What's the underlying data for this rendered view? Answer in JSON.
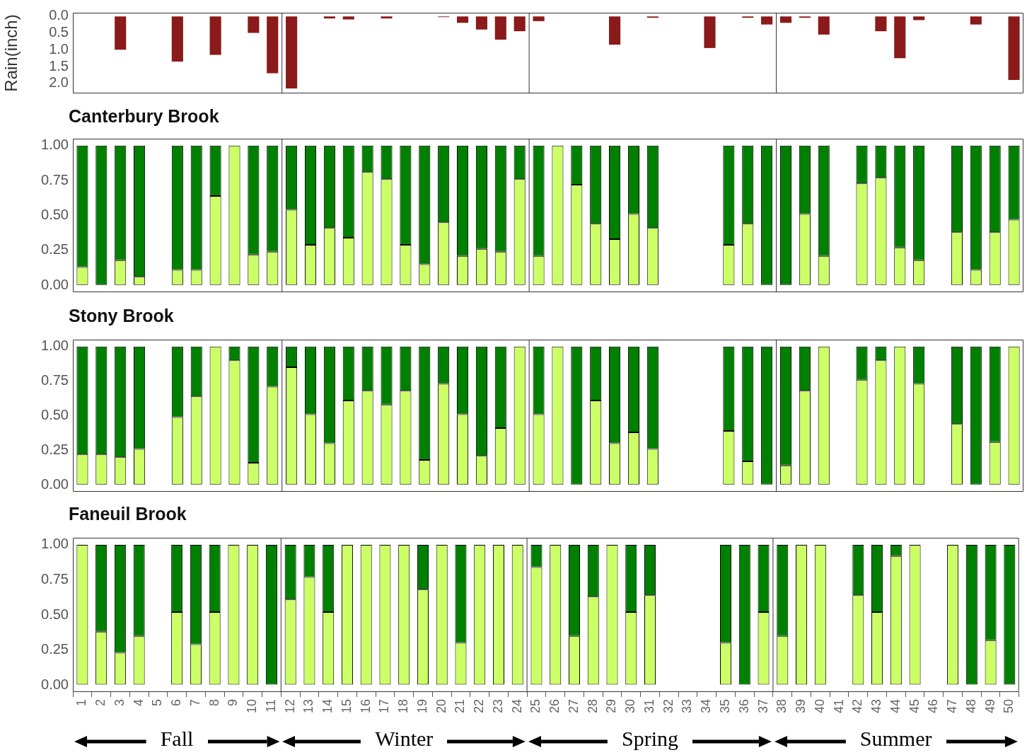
{
  "chart_data": [
    {
      "type": "bar",
      "ylabel": "Rain(inch)",
      "tick_labels": "y",
      "x": [
        1,
        2,
        3,
        4,
        5,
        6,
        7,
        8,
        9,
        10,
        11,
        12,
        13,
        14,
        15,
        16,
        17,
        18,
        19,
        20,
        21,
        22,
        23,
        24,
        25,
        26,
        27,
        28,
        29,
        30,
        31,
        32,
        33,
        34,
        35,
        36,
        37,
        38,
        39,
        40,
        41,
        42,
        43,
        44,
        45,
        46,
        47,
        48,
        49,
        50
      ],
      "xlim": [
        0.5,
        50.5
      ],
      "xticks": [
        1,
        2,
        3,
        4,
        5,
        6,
        7,
        8,
        9,
        10,
        11,
        12,
        13,
        14,
        15,
        16,
        17,
        18,
        19,
        20,
        21,
        22,
        23,
        24,
        25,
        26,
        27,
        28,
        29,
        30,
        31,
        32,
        33,
        34,
        35,
        36,
        37,
        38,
        39,
        40,
        41,
        42,
        43,
        44,
        45,
        46,
        47,
        48,
        49,
        50
      ],
      "ylim": [
        2.3,
        -0.1
      ],
      "yticks": [
        {
          "value": 0,
          "label": "0.0"
        },
        {
          "value": 0.5,
          "label": "0.5"
        },
        {
          "value": 1,
          "label": "1.0"
        },
        {
          "value": 1.5,
          "label": "1.5"
        },
        {
          "value": 2,
          "label": "2.0"
        }
      ],
      "color": "#8b1a1a",
      "values": [
        0,
        0,
        1.0,
        0,
        0,
        1.35,
        0,
        1.15,
        0,
        0.5,
        1.7,
        2.15,
        0,
        0.07,
        0.1,
        0,
        0.07,
        0,
        0,
        0.03,
        0.2,
        0.4,
        0.7,
        0.45,
        0.15,
        0,
        0,
        0,
        0.85,
        0,
        0.05,
        0,
        0,
        0.95,
        0,
        0.05,
        0.25,
        0.2,
        0.05,
        0.55,
        0,
        0,
        0.45,
        1.25,
        0.12,
        0,
        0,
        0.25,
        0,
        1.9
      ],
      "ref_lines": [
        {
          "axis": "x",
          "value": 11.5,
          "color": "#333333"
        },
        {
          "axis": "x",
          "value": 24.5,
          "color": "#333333"
        },
        {
          "axis": "x",
          "value": 37.5,
          "color": "#333333"
        }
      ]
    },
    {
      "type": "bar",
      "title": "Canterbury Brook",
      "stacked": true,
      "tick_labels": "y",
      "x": [
        1,
        2,
        3,
        4,
        5,
        6,
        7,
        8,
        9,
        10,
        11,
        12,
        13,
        14,
        15,
        16,
        17,
        18,
        19,
        20,
        21,
        22,
        23,
        24,
        25,
        26,
        27,
        28,
        29,
        30,
        31,
        32,
        33,
        34,
        35,
        36,
        37,
        38,
        39,
        40,
        41,
        42,
        43,
        44,
        45,
        46,
        47,
        48,
        49,
        50
      ],
      "xlim": [
        0.5,
        50.5
      ],
      "xticks": [
        1,
        2,
        3,
        4,
        5,
        6,
        7,
        8,
        9,
        10,
        11,
        12,
        13,
        14,
        15,
        16,
        17,
        18,
        19,
        20,
        21,
        22,
        23,
        24,
        25,
        26,
        27,
        28,
        29,
        30,
        31,
        32,
        33,
        34,
        35,
        36,
        37,
        38,
        39,
        40,
        41,
        42,
        43,
        44,
        45,
        46,
        47,
        48,
        49,
        50
      ],
      "ylim": [
        -0.05,
        1.05
      ],
      "yticks": [
        {
          "value": 0,
          "label": "0.00"
        },
        {
          "value": 0.25,
          "label": "0.25"
        },
        {
          "value": 0.5,
          "label": "0.50"
        },
        {
          "value": 0.75,
          "label": "0.75"
        },
        {
          "value": 1,
          "label": "1.00"
        }
      ],
      "series": [
        {
          "color": "#ccff66",
          "values": [
            0.13,
            0,
            0.18,
            0.06,
            null,
            0.11,
            0.11,
            0.64,
            1,
            0.22,
            0.24,
            0.54,
            0.29,
            0.41,
            0.34,
            0.81,
            0.76,
            0.29,
            0.15,
            0.45,
            0.21,
            0.26,
            0.24,
            0.76,
            0.21,
            1,
            0.72,
            0.44,
            0.33,
            0.51,
            0.41,
            null,
            null,
            null,
            0.29,
            0.44,
            0,
            0,
            0.51,
            0.21,
            null,
            0.73,
            0.77,
            0.27,
            0.18,
            null,
            0.38,
            0.11,
            0.38,
            0.47
          ]
        },
        {
          "color": "#008000",
          "values": [
            0.87,
            1,
            0.82,
            0.94,
            null,
            0.89,
            0.89,
            0.36,
            0,
            0.78,
            0.76,
            0.46,
            0.71,
            0.59,
            0.66,
            0.19,
            0.24,
            0.71,
            0.85,
            0.55,
            0.79,
            0.74,
            0.76,
            0.24,
            0.79,
            0,
            0.28,
            0.56,
            0.67,
            0.49,
            0.59,
            null,
            null,
            null,
            0.71,
            0.56,
            1,
            1,
            0.49,
            0.79,
            null,
            0.27,
            0.23,
            0.73,
            0.82,
            null,
            0.62,
            0.89,
            0.62,
            0.53
          ]
        }
      ],
      "ref_lines": [
        {
          "axis": "x",
          "value": 11.5,
          "color": "#333333"
        },
        {
          "axis": "x",
          "value": 24.5,
          "color": "#333333"
        },
        {
          "axis": "x",
          "value": 37.5,
          "color": "#333333"
        }
      ]
    },
    {
      "type": "bar",
      "title": "Stony Brook",
      "stacked": true,
      "tick_labels": "y",
      "x": [
        1,
        2,
        3,
        4,
        5,
        6,
        7,
        8,
        9,
        10,
        11,
        12,
        13,
        14,
        15,
        16,
        17,
        18,
        19,
        20,
        21,
        22,
        23,
        24,
        25,
        26,
        27,
        28,
        29,
        30,
        31,
        32,
        33,
        34,
        35,
        36,
        37,
        38,
        39,
        40,
        41,
        42,
        43,
        44,
        45,
        46,
        47,
        48,
        49,
        50
      ],
      "xlim": [
        0.5,
        50.5
      ],
      "xticks": [
        1,
        2,
        3,
        4,
        5,
        6,
        7,
        8,
        9,
        10,
        11,
        12,
        13,
        14,
        15,
        16,
        17,
        18,
        19,
        20,
        21,
        22,
        23,
        24,
        25,
        26,
        27,
        28,
        29,
        30,
        31,
        32,
        33,
        34,
        35,
        36,
        37,
        38,
        39,
        40,
        41,
        42,
        43,
        44,
        45,
        46,
        47,
        48,
        49,
        50
      ],
      "ylim": [
        -0.05,
        1.05
      ],
      "yticks": [
        {
          "value": 0,
          "label": "0.00"
        },
        {
          "value": 0.25,
          "label": "0.25"
        },
        {
          "value": 0.5,
          "label": "0.50"
        },
        {
          "value": 0.75,
          "label": "0.75"
        },
        {
          "value": 1,
          "label": "1.00"
        }
      ],
      "series": [
        {
          "color": "#ccff66",
          "values": [
            0.22,
            0.22,
            0.2,
            0.26,
            null,
            0.49,
            0.64,
            1,
            0.9,
            0.16,
            0.71,
            0.85,
            0.51,
            0.3,
            0.61,
            0.68,
            0.58,
            0.68,
            0.18,
            0.73,
            0.51,
            0.21,
            0.41,
            1,
            0.51,
            1,
            0,
            0.61,
            0.3,
            0.38,
            0.26,
            null,
            null,
            null,
            0.39,
            0.17,
            0,
            0.14,
            0.68,
            1,
            null,
            0.76,
            0.9,
            1,
            0.73,
            null,
            0.44,
            0,
            0.31,
            1
          ]
        },
        {
          "color": "#008000",
          "values": [
            0.78,
            0.78,
            0.8,
            0.74,
            null,
            0.51,
            0.36,
            0,
            0.1,
            0.84,
            0.29,
            0.15,
            0.49,
            0.7,
            0.39,
            0.32,
            0.42,
            0.32,
            0.82,
            0.27,
            0.49,
            0.79,
            0.59,
            0,
            0.49,
            0,
            1,
            0.39,
            0.7,
            0.62,
            0.74,
            null,
            null,
            null,
            0.61,
            0.83,
            1,
            0.86,
            0.32,
            0,
            null,
            0.24,
            0.1,
            0,
            0.27,
            null,
            0.56,
            1,
            0.69,
            0
          ]
        }
      ],
      "ref_lines": [
        {
          "axis": "x",
          "value": 11.5,
          "color": "#333333"
        },
        {
          "axis": "x",
          "value": 24.5,
          "color": "#333333"
        },
        {
          "axis": "x",
          "value": 37.5,
          "color": "#333333"
        }
      ]
    },
    {
      "type": "bar",
      "title": "Faneuil Brook",
      "stacked": true,
      "x": [
        1,
        2,
        3,
        4,
        5,
        6,
        7,
        8,
        9,
        10,
        11,
        12,
        13,
        14,
        15,
        16,
        17,
        18,
        19,
        20,
        21,
        22,
        23,
        24,
        25,
        26,
        27,
        28,
        29,
        30,
        31,
        32,
        33,
        34,
        35,
        36,
        37,
        38,
        39,
        40,
        41,
        42,
        43,
        44,
        45,
        46,
        47,
        48,
        49,
        50
      ],
      "xlim": [
        0.5,
        50.5
      ],
      "xticks": [
        1,
        2,
        3,
        4,
        5,
        6,
        7,
        8,
        9,
        10,
        11,
        12,
        13,
        14,
        15,
        16,
        17,
        18,
        19,
        20,
        21,
        22,
        23,
        24,
        25,
        26,
        27,
        28,
        29,
        30,
        31,
        32,
        33,
        34,
        35,
        36,
        37,
        38,
        39,
        40,
        41,
        42,
        43,
        44,
        45,
        46,
        47,
        48,
        49,
        50
      ],
      "ylim": [
        -0.05,
        1.05
      ],
      "yticks": [
        {
          "value": 0,
          "label": "0.00"
        },
        {
          "value": 0.25,
          "label": "0.25"
        },
        {
          "value": 0.5,
          "label": "0.50"
        },
        {
          "value": 0.75,
          "label": "0.75"
        },
        {
          "value": 1,
          "label": "1.00"
        }
      ],
      "series": [
        {
          "color": "#ccff66",
          "values": [
            1,
            0.38,
            0.23,
            0.35,
            null,
            0.52,
            0.29,
            0.52,
            1,
            1,
            0,
            0.61,
            0.77,
            0.52,
            1,
            1,
            1,
            1,
            0.68,
            1,
            0.3,
            1,
            1,
            1,
            0.84,
            1,
            0.35,
            0.63,
            1,
            0.52,
            0.64,
            null,
            null,
            null,
            0.3,
            0,
            0.52,
            0.35,
            1,
            1,
            null,
            0.64,
            0.52,
            0.92,
            1,
            null,
            1,
            0,
            0.32,
            0
          ]
        },
        {
          "color": "#008000",
          "values": [
            0,
            0.62,
            0.77,
            0.65,
            null,
            0.48,
            0.71,
            0.48,
            0,
            0,
            1,
            0.39,
            0.23,
            0.48,
            0,
            0,
            0,
            0,
            0.32,
            0,
            0.7,
            0,
            0,
            0,
            0.16,
            0,
            0.65,
            0.37,
            0,
            0.48,
            0.36,
            null,
            null,
            null,
            0.7,
            1,
            0.48,
            0.65,
            0,
            0,
            null,
            0.36,
            0.48,
            0.08,
            0,
            null,
            0,
            1,
            0.68,
            1
          ]
        }
      ],
      "ref_lines": [
        {
          "axis": "x",
          "value": 11.5,
          "color": "#333333"
        },
        {
          "axis": "x",
          "value": 24.5,
          "color": "#333333"
        },
        {
          "axis": "x",
          "value": 37.5,
          "color": "#333333"
        }
      ],
      "annotations": [
        "Fall",
        "Winter",
        "Spring",
        "Summer"
      ]
    }
  ]
}
